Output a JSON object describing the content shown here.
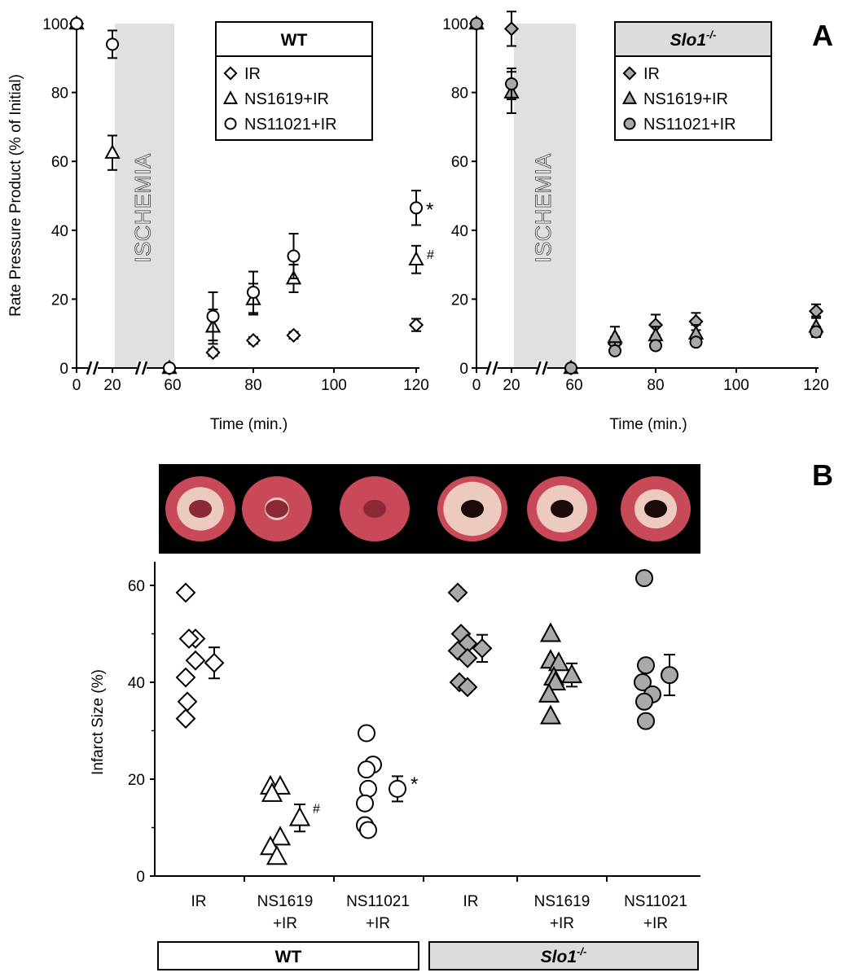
{
  "panel_a_letter": "A",
  "panel_b_letter": "B",
  "chart_data": [
    {
      "type": "scatter",
      "panel": "A-left",
      "group": "WT",
      "xlabel": "Time (min.)",
      "ylabel": "Rate Pressure Product (% of Initial)",
      "ylim": [
        0,
        100
      ],
      "yticks": [
        0,
        20,
        40,
        60,
        80,
        100
      ],
      "xticks": [
        0,
        20,
        60,
        80,
        100,
        120
      ],
      "shaded_region": {
        "label": "ISCHEMIA",
        "x": [
          20,
          60
        ]
      },
      "axis_breaks": [
        10,
        40
      ],
      "legend": {
        "title": "WT",
        "placement": "top-right",
        "entries": [
          "IR",
          "NS1619+IR",
          "NS11021+IR"
        ]
      },
      "marker_fill": "#ffffff",
      "series": [
        {
          "name": "IR",
          "marker": "diamond",
          "points": [
            {
              "x": 0,
              "y": 100,
              "err": 0
            },
            {
              "x": 60,
              "y": 0,
              "err": 0
            },
            {
              "x": 70,
              "y": 4.5,
              "err": 1
            },
            {
              "x": 80,
              "y": 8,
              "err": 1
            },
            {
              "x": 90,
              "y": 9.5,
              "err": 1
            },
            {
              "x": 120,
              "y": 12.5,
              "err": 1.8
            }
          ]
        },
        {
          "name": "NS1619+IR",
          "marker": "triangle",
          "points": [
            {
              "x": 0,
              "y": 100,
              "err": 0
            },
            {
              "x": 20,
              "y": 62.5,
              "err": 5
            },
            {
              "x": 60,
              "y": 0,
              "err": 0
            },
            {
              "x": 70,
              "y": 12,
              "err": 5
            },
            {
              "x": 80,
              "y": 20,
              "err": 4.5
            },
            {
              "x": 90,
              "y": 26,
              "err": 4
            },
            {
              "x": 120,
              "y": 31.5,
              "err": 4
            }
          ]
        },
        {
          "name": "NS11021+IR",
          "marker": "circle",
          "points": [
            {
              "x": 0,
              "y": 100,
              "err": 0
            },
            {
              "x": 20,
              "y": 94,
              "err": 4
            },
            {
              "x": 60,
              "y": 0,
              "err": 0
            },
            {
              "x": 70,
              "y": 15,
              "err": 7
            },
            {
              "x": 80,
              "y": 22,
              "err": 6
            },
            {
              "x": 90,
              "y": 32.5,
              "err": 6.5
            },
            {
              "x": 120,
              "y": 46.5,
              "err": 5
            }
          ]
        }
      ],
      "annotations": [
        {
          "text": "*",
          "x": 120,
          "y": 46.5
        },
        {
          "text": "#",
          "x": 120,
          "y": 31.5
        }
      ]
    },
    {
      "type": "scatter",
      "panel": "A-right",
      "group": "Slo1-/-",
      "xlabel": "Time (min.)",
      "ylim": [
        0,
        100
      ],
      "yticks": [
        0,
        20,
        40,
        60,
        80,
        100
      ],
      "xticks": [
        0,
        20,
        60,
        80,
        100,
        120
      ],
      "shaded_region": {
        "label": "ISCHEMIA",
        "x": [
          20,
          60
        ]
      },
      "axis_breaks": [
        10,
        40
      ],
      "legend": {
        "title": "Slo1",
        "title_sup": "-/-",
        "placement": "top-right",
        "entries": [
          "IR",
          "NS1619+IR",
          "NS11021+IR"
        ]
      },
      "marker_fill": "#a9a9a9",
      "series": [
        {
          "name": "IR",
          "marker": "diamond",
          "points": [
            {
              "x": 0,
              "y": 100,
              "err": 0
            },
            {
              "x": 20,
              "y": 98.5,
              "err": 5
            },
            {
              "x": 60,
              "y": 0,
              "err": 0
            },
            {
              "x": 70,
              "y": 7,
              "err": 2
            },
            {
              "x": 80,
              "y": 12.5,
              "err": 3
            },
            {
              "x": 90,
              "y": 13.5,
              "err": 2.5
            },
            {
              "x": 120,
              "y": 16.5,
              "err": 2
            }
          ]
        },
        {
          "name": "NS1619+IR",
          "marker": "triangle",
          "points": [
            {
              "x": 0,
              "y": 100,
              "err": 0
            },
            {
              "x": 20,
              "y": 80,
              "err": 6
            },
            {
              "x": 60,
              "y": 0,
              "err": 0
            },
            {
              "x": 70,
              "y": 9,
              "err": 3
            },
            {
              "x": 80,
              "y": 9.5,
              "err": 2.5
            },
            {
              "x": 90,
              "y": 10,
              "err": 2.5
            },
            {
              "x": 120,
              "y": 12,
              "err": 3
            }
          ]
        },
        {
          "name": "NS11021+IR",
          "marker": "circle",
          "points": [
            {
              "x": 0,
              "y": 100,
              "err": 0
            },
            {
              "x": 20,
              "y": 82.5,
              "err": 4.5
            },
            {
              "x": 60,
              "y": 0,
              "err": 0
            },
            {
              "x": 70,
              "y": 5,
              "err": 1
            },
            {
              "x": 80,
              "y": 6.5,
              "err": 1
            },
            {
              "x": 90,
              "y": 7.5,
              "err": 1
            },
            {
              "x": 120,
              "y": 10.5,
              "err": 1.5
            }
          ]
        }
      ]
    },
    {
      "type": "scatter",
      "panel": "B",
      "ylabel": "Infarct Size (%)",
      "ylim": [
        0,
        65
      ],
      "yticks": [
        0,
        20,
        40,
        60
      ],
      "categories": [
        "IR",
        "NS1619\n+IR",
        "NS11021\n+IR",
        "IR",
        "NS1619\n+IR",
        "NS11021\n+IR"
      ],
      "category_groups": [
        {
          "label": "WT",
          "label_sup": "",
          "span": [
            0,
            2
          ],
          "fill": "#ffffff"
        },
        {
          "label": "Slo1",
          "label_sup": "-/-",
          "span": [
            3,
            5
          ],
          "fill": "#dcdcdc"
        }
      ],
      "series": [
        {
          "category": 0,
          "marker": "diamond",
          "fill": "#ffffff",
          "individual": [
            58.5,
            49,
            49,
            44.5,
            41,
            36,
            32.5
          ],
          "mean": 44,
          "err": 3.2
        },
        {
          "category": 1,
          "marker": "triangle",
          "fill": "#ffffff",
          "individual": [
            18.5,
            18.5,
            17,
            8,
            6,
            4
          ],
          "mean": 12,
          "err": 2.8,
          "annotation": "#"
        },
        {
          "category": 2,
          "marker": "circle",
          "fill": "#ffffff",
          "individual": [
            29.5,
            23,
            22,
            18,
            15,
            10.5,
            9.5
          ],
          "mean": 18,
          "err": 2.6,
          "annotation": "*"
        },
        {
          "category": 3,
          "marker": "diamond",
          "fill": "#a9a9a9",
          "individual": [
            58.5,
            50,
            48,
            46.5,
            45,
            40,
            39
          ],
          "mean": 47,
          "err": 2.8
        },
        {
          "category": 4,
          "marker": "triangle",
          "fill": "#a9a9a9",
          "individual": [
            50,
            44.5,
            44,
            41,
            40,
            37.5,
            33
          ],
          "mean": 41.5,
          "err": 2.4
        },
        {
          "category": 5,
          "marker": "circle",
          "fill": "#a9a9a9",
          "individual": [
            61.5,
            43.5,
            40,
            37.5,
            36,
            32
          ],
          "mean": 41.5,
          "err": 4.2
        }
      ]
    }
  ],
  "photo_strip": {
    "count": 6,
    "background": "#000000",
    "tissue": "#c84a58",
    "infarct": "#f0d8cc"
  }
}
